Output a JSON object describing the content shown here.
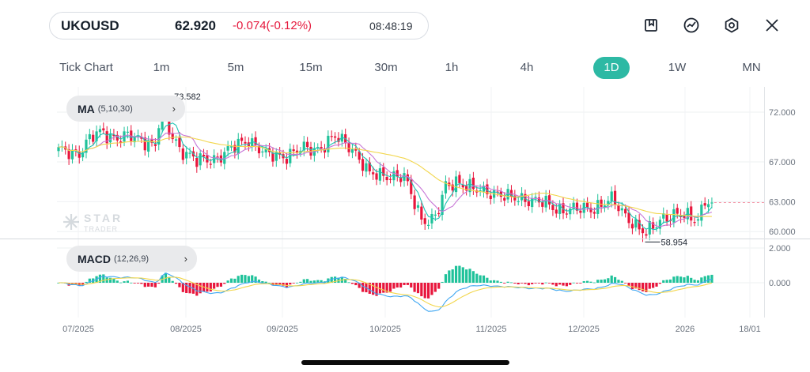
{
  "ticker": {
    "symbol": "UKOUSD",
    "price": "62.920",
    "change": "-0.074(-0.12%)",
    "time": "08:48:19"
  },
  "toolbar_icons": [
    "bookmark-icon",
    "indicator-icon",
    "settings-icon",
    "close-icon"
  ],
  "timeframes": [
    "Tick Chart",
    "1m",
    "5m",
    "15m",
    "30m",
    "1h",
    "4h",
    "1D",
    "1W",
    "MN"
  ],
  "active_timeframe": "1D",
  "colors": {
    "up": "#1fc29a",
    "down": "#e8163c",
    "accent": "#2db9a4",
    "ma5": "#22c4b5",
    "ma10": "#c776d6",
    "ma30": "#f2d64b",
    "dif": "#3fa7f2",
    "dea": "#f2d64b"
  },
  "indicators": {
    "ma": {
      "name": "MA",
      "params": "(5,10,30)"
    },
    "macd": {
      "name": "MACD",
      "params": "(12,26,9)"
    }
  },
  "watermark": {
    "brand": "STAR",
    "sub": "TRADER"
  },
  "chart_data": [
    {
      "type": "candlestick",
      "price_axis_ticks": [
        "72.000",
        "67.000",
        "63.000",
        "60.000"
      ],
      "max_label": "73.582",
      "min_label": "58.954",
      "x_labels": [
        "07/2025",
        "08/2025",
        "09/2025",
        "10/2025",
        "11/2025",
        "12/2025",
        "2026",
        "18/01"
      ],
      "close_anchors": [
        [
          0,
          67.9
        ],
        [
          6,
          68.1
        ],
        [
          9,
          69.2
        ],
        [
          13,
          70.0
        ],
        [
          18,
          69.4
        ],
        [
          25,
          69.3
        ],
        [
          28,
          68.6
        ],
        [
          30,
          73.0
        ],
        [
          32,
          70.0
        ],
        [
          35,
          68.6
        ],
        [
          40,
          66.9
        ],
        [
          45,
          67.5
        ],
        [
          50,
          68.1
        ],
        [
          55,
          69.5
        ],
        [
          60,
          67.5
        ],
        [
          68,
          67.9
        ],
        [
          75,
          68.5
        ],
        [
          80,
          69.3
        ],
        [
          85,
          68.6
        ],
        [
          90,
          65.5
        ],
        [
          95,
          65.9
        ],
        [
          100,
          65.2
        ],
        [
          105,
          61.5
        ],
        [
          108,
          61.0
        ],
        [
          110,
          62.0
        ],
        [
          112,
          64.5
        ],
        [
          115,
          65.3
        ],
        [
          120,
          64.0
        ],
        [
          125,
          64.2
        ],
        [
          130,
          63.2
        ],
        [
          135,
          63.5
        ],
        [
          140,
          62.7
        ],
        [
          145,
          62.4
        ],
        [
          150,
          62.0
        ],
        [
          155,
          62.6
        ],
        [
          160,
          63.0
        ],
        [
          165,
          61.5
        ],
        [
          168,
          60.2
        ],
        [
          170,
          59.5
        ],
        [
          172,
          60.5
        ],
        [
          175,
          61.7
        ],
        [
          180,
          61.4
        ],
        [
          185,
          61.6
        ],
        [
          187,
          63.1
        ],
        [
          189,
          62.92
        ]
      ]
    },
    {
      "type": "macd",
      "axis_ticks": [
        "2.000",
        "0.000"
      ]
    }
  ]
}
